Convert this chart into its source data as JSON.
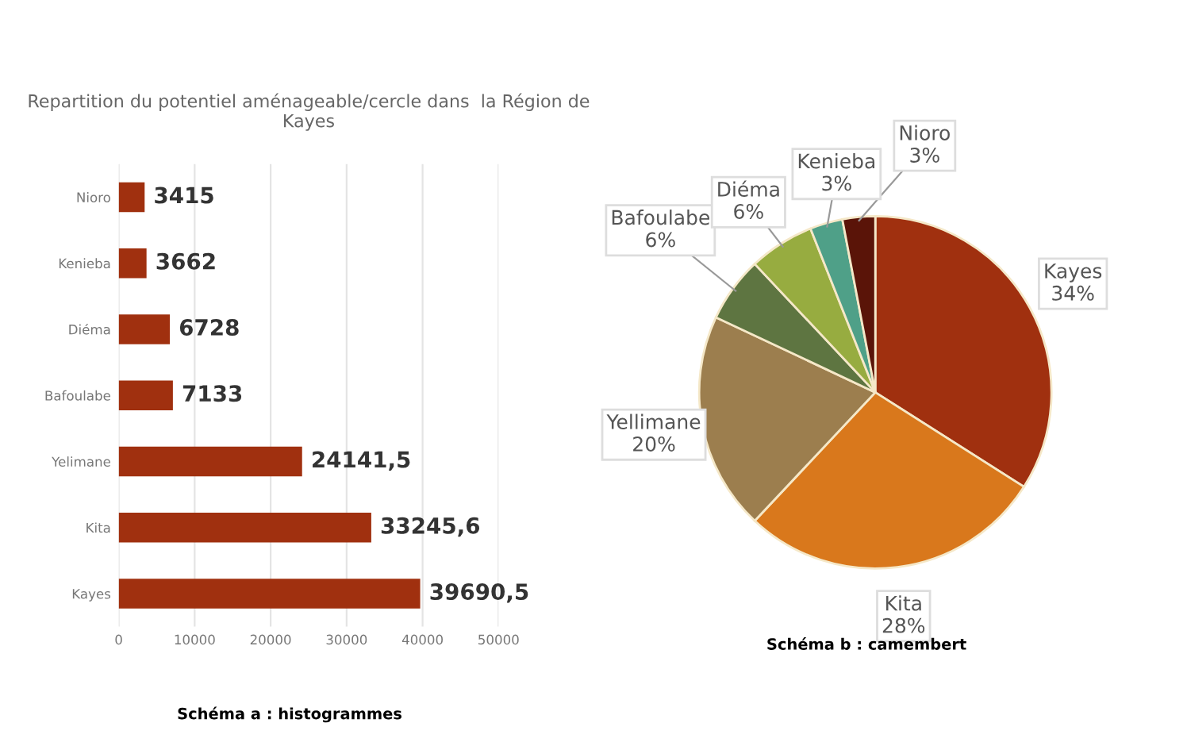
{
  "chart_data": [
    {
      "type": "bar",
      "orientation": "horizontal",
      "title": "Repartition du potentiel aménageable/cercle dans  la Région de Kayes",
      "categories": [
        "Nioro",
        "Kenieba",
        "Diéma",
        "Bafoulabe",
        "Yelimane",
        "Kita",
        "Kayes"
      ],
      "values": [
        3415,
        3662,
        6728,
        7133,
        24141.5,
        33245.6,
        39690.5
      ],
      "value_labels": [
        "3415",
        "3662",
        "6728",
        "7133",
        "24141,5",
        "33245,6",
        "39690,5"
      ],
      "color": "#a0300f",
      "xlim": [
        0,
        50000
      ],
      "xticks": [
        0,
        10000,
        20000,
        30000,
        40000,
        50000
      ],
      "grid": "x",
      "annotations": [
        "Schéma a : histogrammes"
      ]
    },
    {
      "type": "pie",
      "categories": [
        "Kayes",
        "Kita",
        "Yellimane",
        "Bafoulabe",
        "Diéma",
        "Kenieba",
        "Nioro"
      ],
      "values": [
        34,
        28,
        20,
        6,
        6,
        3,
        3
      ],
      "value_labels": [
        "34%",
        "28%",
        "20%",
        "6%",
        "6%",
        "3%",
        "3%"
      ],
      "colors": [
        "#a0300f",
        "#d9781c",
        "#9c7e4e",
        "#5e7541",
        "#97ac40",
        "#4fa088",
        "#5a1408"
      ],
      "annotations": [
        "Schéma b : camembert"
      ]
    }
  ]
}
